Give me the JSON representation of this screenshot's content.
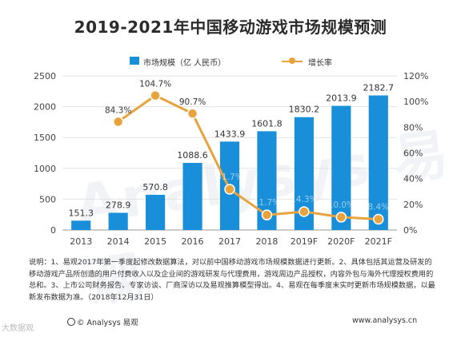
{
  "title": "2019-2021年中国移动游戏市场规模预测",
  "chart_data": {
    "type": "bar+line",
    "categories": [
      "2013",
      "2014",
      "2015",
      "2016",
      "2017",
      "2018",
      "2019F",
      "2020F",
      "2021F"
    ],
    "series": [
      {
        "name": "市场规模（亿 人民币）",
        "type": "bar",
        "axis": "left",
        "values": [
          151.3,
          278.9,
          570.8,
          1088.6,
          1433.9,
          1601.8,
          1830.2,
          2013.9,
          2182.7
        ],
        "labels": [
          "151.3",
          "278.9",
          "570.8",
          "1088.6",
          "1433.9",
          "1601.8",
          "1830.2",
          "2013.9",
          "2182.7"
        ]
      },
      {
        "name": "增长率",
        "type": "line",
        "axis": "right",
        "values": [
          null,
          84.3,
          104.7,
          90.7,
          31.7,
          11.7,
          14.3,
          10.0,
          8.4
        ],
        "labels": [
          "",
          "84.3%",
          "104.7%",
          "90.7%",
          "31.7%",
          "11.7%",
          "14.3%",
          "10.0%",
          "8.4%"
        ]
      }
    ],
    "ylim_left": [
      0,
      2500
    ],
    "yticks_left": [
      "0",
      "500",
      "1000",
      "1500",
      "2000",
      "2500"
    ],
    "ylim_right": [
      0,
      120
    ],
    "yticks_right": [
      "0%",
      "20%",
      "40%",
      "60%",
      "80%",
      "100%",
      "120%"
    ],
    "legend_position": "top",
    "colors": {
      "bar": "#1a8fd9",
      "line": "#e8a33c",
      "grid": "#e3e3e3"
    }
  },
  "notes": "说明：1、易观2017年第一季度起修改数据算法，对以前中国移动游戏市场规模数据进行更新。2、具体包括其运营及研发的移动游戏产品所创造的用户付费收入以及企业间的游戏研发与代理费用，游戏周边产品授权，内容外包与海外代理授权费用的总和。3、上市公司财务报告、专家访谈、厂商深访以及易观推算模型得出。4、易观在每季度末实时更新市场规模数据，以最新发布数据为准。（2018年12月31日）",
  "footer_left": "© Analysys 易观",
  "footer_right": "www.analysys.cn",
  "watermark": "Analysys 易观",
  "corner_watermark": "大数据观"
}
